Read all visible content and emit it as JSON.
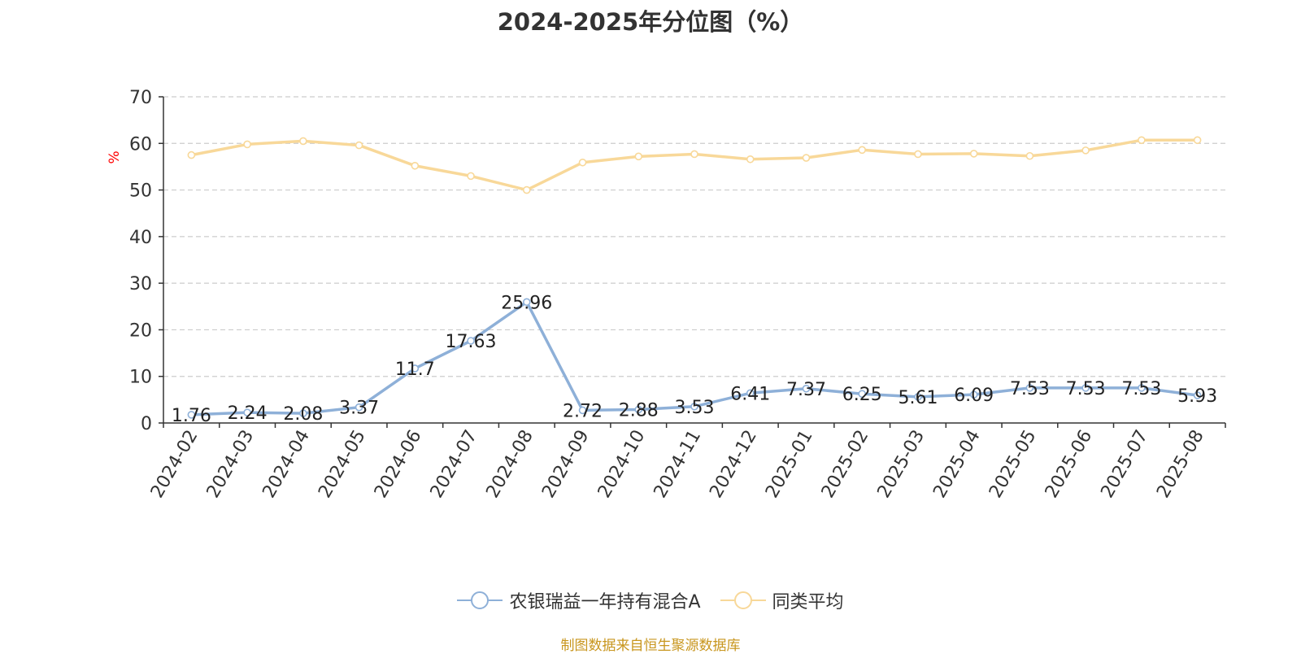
{
  "chart_data": {
    "type": "line",
    "title": "2024-2025年分位图（%）",
    "ylabel": "%",
    "ylim": [
      0,
      70
    ],
    "yticks": [
      0,
      10,
      20,
      30,
      40,
      50,
      60,
      70
    ],
    "grid": true,
    "legend_position": "bottom",
    "categories": [
      "2024-02",
      "2024-03",
      "2024-04",
      "2024-05",
      "2024-06",
      "2024-07",
      "2024-08",
      "2024-09",
      "2024-10",
      "2024-11",
      "2024-12",
      "2025-01",
      "2025-02",
      "2025-03",
      "2025-04",
      "2025-05",
      "2025-06",
      "2025-07",
      "2025-08"
    ],
    "series": [
      {
        "name": "农银瑞益一年持有混合A",
        "color": "#8eb0d8",
        "show_labels": true,
        "values": [
          1.76,
          2.24,
          2.08,
          3.37,
          11.7,
          17.63,
          25.96,
          2.72,
          2.88,
          3.53,
          6.41,
          7.37,
          6.25,
          5.61,
          6.09,
          7.53,
          7.53,
          7.53,
          5.93
        ]
      },
      {
        "name": "同类平均",
        "color": "#f8d899",
        "show_labels": false,
        "values": [
          57.5,
          59.8,
          60.5,
          59.6,
          55.2,
          53.0,
          50.0,
          55.9,
          57.2,
          57.7,
          56.6,
          56.9,
          58.6,
          57.7,
          57.8,
          57.3,
          58.5,
          60.7,
          60.7
        ]
      }
    ]
  },
  "footer": {
    "source": "制图数据来自恒生聚源数据库"
  }
}
